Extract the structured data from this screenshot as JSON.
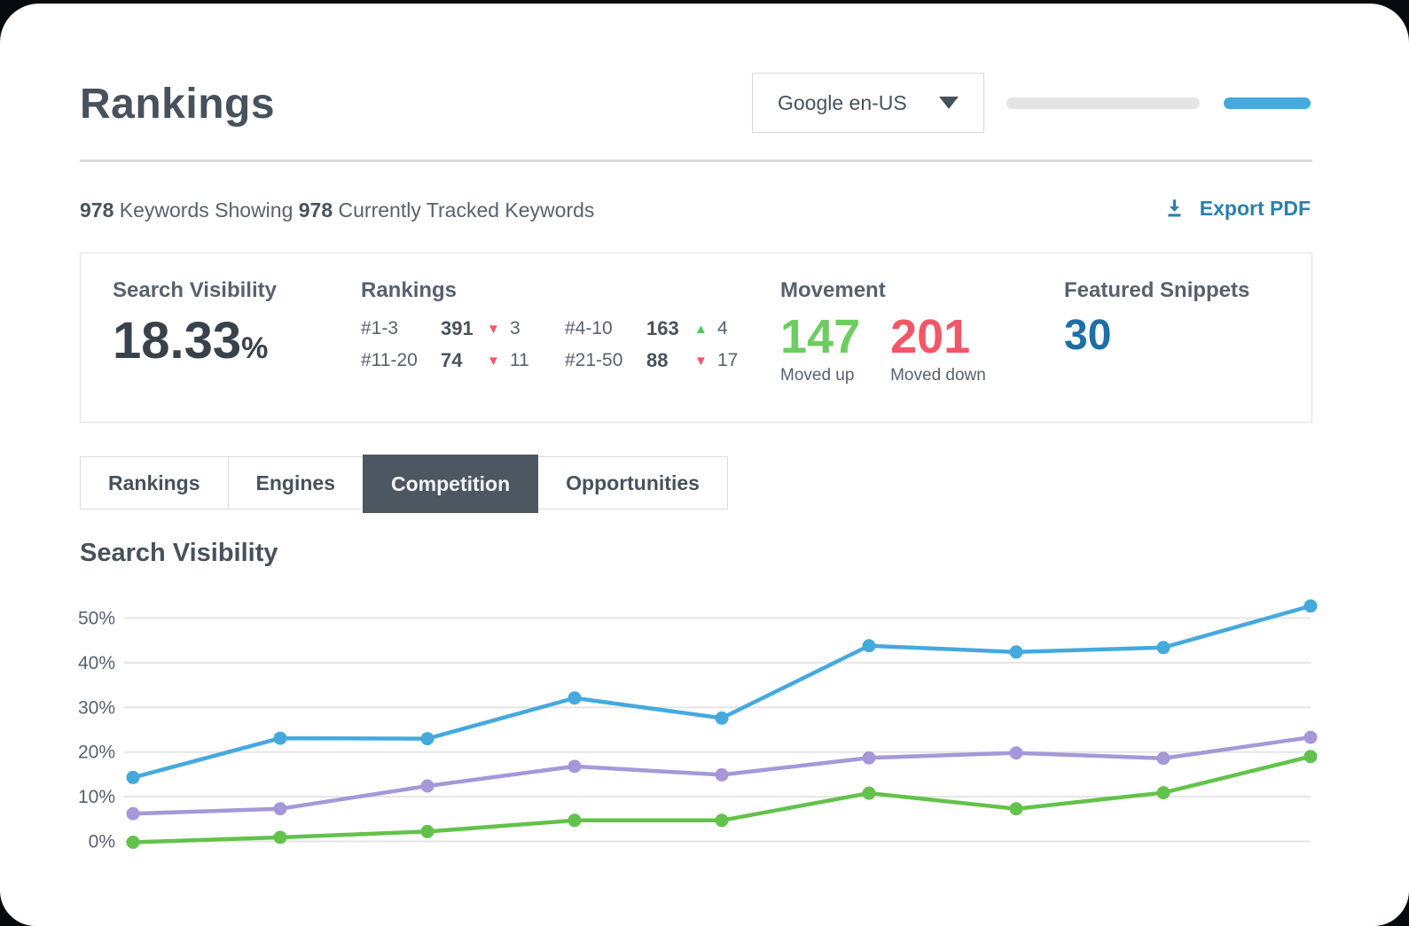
{
  "header": {
    "title": "Rankings",
    "engine_dropdown": {
      "value": "Google en-US"
    }
  },
  "toolbar": {
    "count_showing": "978",
    "text_showing": " Keywords Showing ",
    "count_tracked": "978",
    "text_tracked": " Currently Tracked Keywords",
    "export_label": "Export PDF"
  },
  "stats": {
    "search_visibility": {
      "heading": "Search Visibility",
      "value": "18.33",
      "unit": "%"
    },
    "rankings": {
      "heading": "Rankings",
      "items": [
        {
          "range": "#1-3",
          "value": "391",
          "delta": "3",
          "direction": "down",
          "tri": "▼",
          "tri_class": "tri down"
        },
        {
          "range": "#4-10",
          "value": "163",
          "delta": "4",
          "direction": "up",
          "tri": "▲",
          "tri_class": "tri up"
        },
        {
          "range": "#11-20",
          "value": "74",
          "delta": "11",
          "direction": "down",
          "tri": "▼",
          "tri_class": "tri down"
        },
        {
          "range": "#21-50",
          "value": "88",
          "delta": "17",
          "direction": "down",
          "tri": "▼",
          "tri_class": "tri down"
        }
      ]
    },
    "movement": {
      "heading": "Movement",
      "up_value": "147",
      "up_label": "Moved up",
      "down_value": "201",
      "down_label": "Moved down"
    },
    "featured_snippets": {
      "heading": "Featured Snippets",
      "value": "30"
    }
  },
  "tabs": [
    {
      "label": "Rankings",
      "active": false
    },
    {
      "label": "Engines",
      "active": false
    },
    {
      "label": "Competition",
      "active": true
    },
    {
      "label": "Opportunities",
      "active": false
    }
  ],
  "chart_data": {
    "type": "line",
    "title": "Search Visibility",
    "xlabel": "",
    "ylabel": "",
    "x_count": 9,
    "x_labels": [],
    "ylim": [
      0,
      55
    ],
    "grid": true,
    "legend": "none",
    "yticks": [
      {
        "label": "50%",
        "value": 50
      },
      {
        "label": "40%",
        "value": 40
      },
      {
        "label": "30%",
        "value": 30
      },
      {
        "label": "20%",
        "value": 20
      },
      {
        "label": "10%",
        "value": 10
      },
      {
        "label": "0%",
        "value": 0
      }
    ],
    "series": [
      {
        "name": "blue",
        "color": "#45a9de",
        "values": [
          14.3,
          23.1,
          23.0,
          32.1,
          27.6,
          43.8,
          42.4,
          43.4,
          52.7
        ]
      },
      {
        "name": "purple",
        "color": "#a698d8",
        "values": [
          6.2,
          7.3,
          12.4,
          16.8,
          14.9,
          18.7,
          19.8,
          18.6,
          23.3
        ]
      },
      {
        "name": "green",
        "color": "#63c24b",
        "values": [
          -0.2,
          0.9,
          2.2,
          4.7,
          4.7,
          10.8,
          7.3,
          10.9,
          19.0
        ]
      }
    ]
  },
  "colors": {
    "accent_blue": "#45a9de",
    "link_blue": "#2d7fad",
    "stat_blue": "#1d6fa5",
    "up_green": "#6ecc62",
    "down_red": "#f25767",
    "dark_slate": "#4d5761"
  }
}
